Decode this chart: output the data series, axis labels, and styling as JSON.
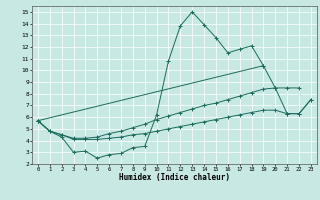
{
  "xlabel": "Humidex (Indice chaleur)",
  "xlim": [
    -0.5,
    23.5
  ],
  "ylim": [
    2,
    15.5
  ],
  "xticks": [
    0,
    1,
    2,
    3,
    4,
    5,
    6,
    7,
    8,
    9,
    10,
    11,
    12,
    13,
    14,
    15,
    16,
    17,
    18,
    19,
    20,
    21,
    22,
    23
  ],
  "yticks": [
    2,
    3,
    4,
    5,
    6,
    7,
    8,
    9,
    10,
    11,
    12,
    13,
    14,
    15
  ],
  "bg_color": "#c8e8e4",
  "line_color": "#1a6b5a",
  "lines": [
    {
      "x": [
        0,
        1,
        2,
        3,
        4,
        5,
        6,
        7,
        8,
        9,
        10,
        11,
        12,
        13,
        14,
        15,
        16,
        17,
        18,
        19
      ],
      "y": [
        5.7,
        4.8,
        4.3,
        3.0,
        3.1,
        2.5,
        2.8,
        2.9,
        3.4,
        3.5,
        6.2,
        10.8,
        13.8,
        15.0,
        13.9,
        12.8,
        11.5,
        11.8,
        12.1,
        10.4
      ]
    },
    {
      "x": [
        0,
        19,
        20,
        21,
        22,
        23
      ],
      "y": [
        5.7,
        10.4,
        8.5,
        6.3,
        6.3,
        7.5
      ]
    },
    {
      "x": [
        0,
        1,
        2,
        3,
        4,
        5,
        6,
        7,
        8,
        9,
        10,
        11,
        12,
        13,
        14,
        15,
        16,
        17,
        18,
        19,
        20,
        21,
        22,
        23
      ],
      "y": [
        5.7,
        4.8,
        4.5,
        4.2,
        4.2,
        4.3,
        4.6,
        4.8,
        5.1,
        5.4,
        5.8,
        6.1,
        6.4,
        6.7,
        7.0,
        7.2,
        7.5,
        7.8,
        8.1,
        8.4,
        8.5,
        8.5,
        8.5,
        null
      ]
    },
    {
      "x": [
        0,
        1,
        2,
        3,
        4,
        5,
        6,
        7,
        8,
        9,
        10,
        11,
        12,
        13,
        14,
        15,
        16,
        17,
        18,
        19,
        20,
        21,
        22,
        23
      ],
      "y": [
        5.7,
        4.8,
        4.5,
        4.1,
        4.1,
        4.1,
        4.2,
        4.3,
        4.5,
        4.6,
        4.8,
        5.0,
        5.2,
        5.4,
        5.6,
        5.8,
        6.0,
        6.2,
        6.4,
        6.6,
        6.6,
        6.3,
        6.3,
        7.5
      ]
    }
  ]
}
